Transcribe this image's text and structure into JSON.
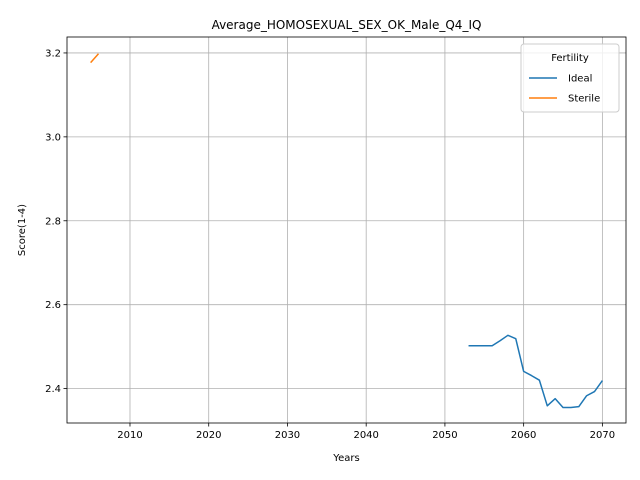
{
  "chart_data": {
    "type": "line",
    "title": "Average_HOMOSEXUAL_SEX_OK_Male_Q4_IQ",
    "xlabel": "Years",
    "ylabel": "Score(1-4)",
    "xlim": [
      2002,
      2073
    ],
    "ylim": [
      2.318,
      3.238
    ],
    "xticks": [
      2010,
      2020,
      2030,
      2040,
      2050,
      2060,
      2070
    ],
    "yticks": [
      2.4,
      2.6,
      2.8,
      3.0,
      3.2
    ],
    "ytick_labels": [
      "2.4",
      "2.6",
      "2.8",
      "3.0",
      "3.2"
    ],
    "grid": true,
    "legend": {
      "title": "Fertility",
      "placement": "top-right"
    },
    "series": [
      {
        "name": "Ideal",
        "color": "#1f77b4",
        "x": [
          2053,
          2054,
          2055,
          2056,
          2057,
          2058,
          2059,
          2060,
          2061,
          2062,
          2063,
          2064,
          2065,
          2066,
          2067,
          2068,
          2069,
          2070
        ],
        "y": [
          2.502,
          2.502,
          2.502,
          2.502,
          2.514,
          2.527,
          2.519,
          2.441,
          2.431,
          2.42,
          2.359,
          2.376,
          2.355,
          2.355,
          2.357,
          2.383,
          2.393,
          2.419
        ]
      },
      {
        "name": "Sterile",
        "color": "#ff7f0e",
        "x": [
          2005,
          2006
        ],
        "y": [
          3.177,
          3.198
        ]
      }
    ]
  }
}
